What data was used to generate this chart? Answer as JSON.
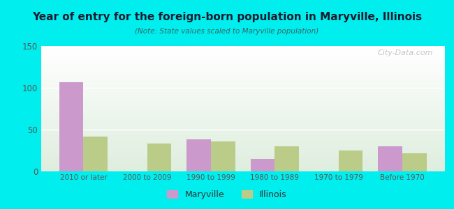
{
  "title": "Year of entry for the foreign-born population in Maryville, Illinois",
  "subtitle": "(Note: State values scaled to Maryville population)",
  "categories": [
    "2010 or later",
    "2000 to 2009",
    "1990 to 1999",
    "1980 to 1989",
    "1970 to 1979",
    "Before 1970"
  ],
  "maryville_values": [
    107,
    0,
    38,
    15,
    0,
    30
  ],
  "illinois_values": [
    42,
    33,
    36,
    30,
    25,
    22
  ],
  "maryville_color": "#cc99cc",
  "illinois_color": "#bbcc88",
  "background_outer": "#00eeee",
  "ylim": [
    0,
    150
  ],
  "yticks": [
    0,
    50,
    100,
    150
  ],
  "bar_width": 0.38,
  "legend_labels": [
    "Maryville",
    "Illinois"
  ],
  "watermark": "City-Data.com"
}
